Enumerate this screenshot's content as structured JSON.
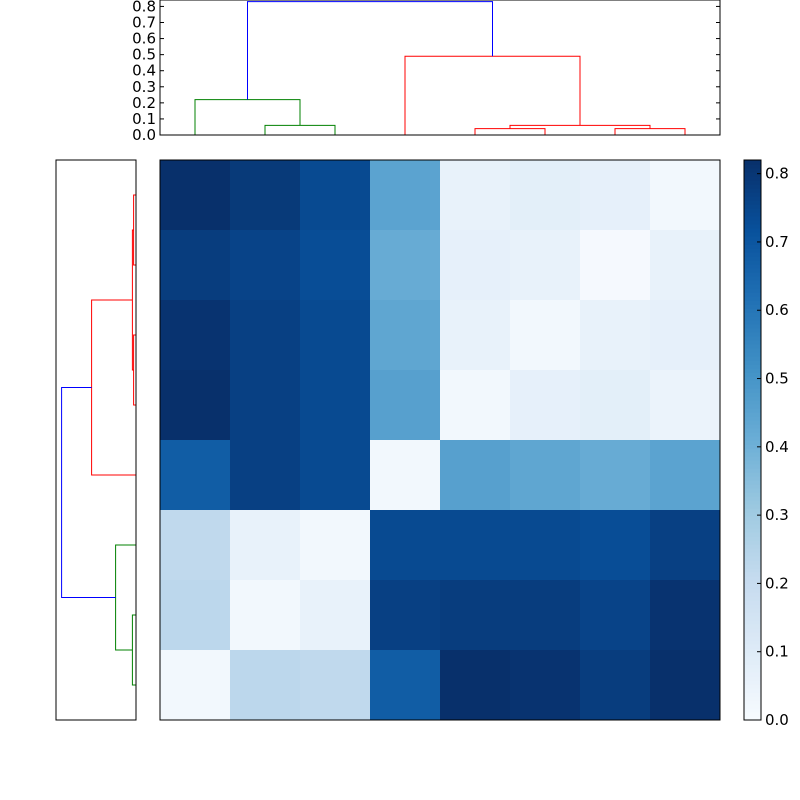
{
  "chart_data": {
    "type": "heatmap",
    "title": "",
    "xlabel": "",
    "ylabel": "",
    "matrix": [
      [
        0.82,
        0.79,
        0.74,
        0.45,
        0.06,
        0.08,
        0.07,
        0.02
      ],
      [
        0.78,
        0.76,
        0.73,
        0.42,
        0.07,
        0.06,
        0.01,
        0.06
      ],
      [
        0.81,
        0.77,
        0.74,
        0.44,
        0.06,
        0.02,
        0.06,
        0.07
      ],
      [
        0.82,
        0.77,
        0.74,
        0.46,
        0.02,
        0.07,
        0.08,
        0.05
      ],
      [
        0.68,
        0.77,
        0.74,
        0.02,
        0.46,
        0.44,
        0.42,
        0.45
      ],
      [
        0.22,
        0.06,
        0.02,
        0.74,
        0.74,
        0.74,
        0.73,
        0.77
      ],
      [
        0.23,
        0.02,
        0.06,
        0.77,
        0.78,
        0.78,
        0.76,
        0.81
      ],
      [
        0.02,
        0.23,
        0.22,
        0.68,
        0.82,
        0.81,
        0.78,
        0.82
      ]
    ],
    "colorbar": {
      "min": 0.0,
      "max": 0.82,
      "colormap": "Blues",
      "tick_labels": [
        "0.0",
        "0.1",
        "0.2",
        "0.3",
        "0.4",
        "0.5",
        "0.6",
        "0.7",
        "0.8"
      ]
    },
    "top_dendrogram": {
      "yaxis_tick_labels": [
        "0.0",
        "0.1",
        "0.2",
        "0.3",
        "0.4",
        "0.5",
        "0.6",
        "0.7",
        "0.8"
      ],
      "ylim": [
        0,
        0.84
      ],
      "leaf_order": [
        0,
        1,
        2,
        3,
        4,
        5,
        6,
        7
      ],
      "links": [
        {
          "left": 1,
          "right": 2,
          "height": 0.06,
          "color": "#008000"
        },
        {
          "left": 0,
          "right": "1+2",
          "height": 0.22,
          "color": "#008000"
        },
        {
          "left": 4,
          "right": 5,
          "height": 0.04,
          "color": "#ff0000"
        },
        {
          "left": 6,
          "right": 7,
          "height": 0.04,
          "color": "#ff0000"
        },
        {
          "left": "4+5",
          "right": "6+7",
          "height": 0.06,
          "color": "#ff0000"
        },
        {
          "left": 3,
          "right": "4..7",
          "height": 0.49,
          "color": "#ff0000"
        },
        {
          "left": "0..2",
          "right": "3..7",
          "height": 0.83,
          "color": "#0000ff"
        }
      ]
    },
    "left_dendrogram": {
      "leaf_order_top_to_bottom": [
        7,
        6,
        5,
        4,
        3,
        2,
        1,
        0
      ],
      "links": [
        {
          "left": 7,
          "right": 6,
          "height": 0.02,
          "color": "#ff0000"
        },
        {
          "left": 5,
          "right": 4,
          "height": 0.02,
          "color": "#ff0000"
        },
        {
          "left": "7+6",
          "right": "5+4",
          "height": 0.03,
          "color": "#ff0000"
        },
        {
          "left": "7..4",
          "right": 3,
          "height": 0.37,
          "color": "#ff0000"
        },
        {
          "left": 1,
          "right": 0,
          "height": 0.03,
          "color": "#008000"
        },
        {
          "left": 2,
          "right": "1+0",
          "height": 0.17,
          "color": "#008000"
        },
        {
          "left": "7..3",
          "right": "2..0",
          "height": 0.62,
          "color": "#0000ff"
        }
      ]
    }
  }
}
